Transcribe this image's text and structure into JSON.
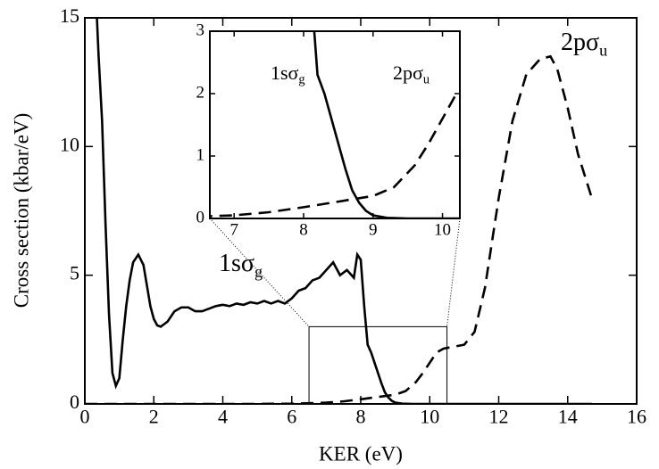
{
  "chart_data": {
    "type": "line",
    "xlabel": "KER (eV)",
    "ylabel": "Cross section (kbar/eV)",
    "xlim": [
      0,
      16
    ],
    "xticks": [
      0,
      2,
      4,
      6,
      8,
      10,
      12,
      14,
      16
    ],
    "ylim": [
      0,
      15
    ],
    "yticks": [
      0,
      5,
      10,
      15
    ],
    "series": [
      {
        "label": {
          "text": "1sσ",
          "sub": "g"
        },
        "color": "#000000",
        "dash": "solid",
        "x": [
          0.35,
          0.4,
          0.5,
          0.6,
          0.7,
          0.8,
          0.9,
          1.0,
          1.1,
          1.2,
          1.3,
          1.4,
          1.55,
          1.7,
          1.8,
          1.9,
          2.0,
          2.1,
          2.2,
          2.4,
          2.6,
          2.8,
          3.0,
          3.2,
          3.4,
          3.6,
          3.8,
          4.0,
          4.2,
          4.4,
          4.6,
          4.8,
          5.0,
          5.2,
          5.4,
          5.6,
          5.8,
          6.0,
          6.2,
          6.4,
          6.6,
          6.8,
          7.0,
          7.2,
          7.4,
          7.6,
          7.8,
          7.9,
          8.0,
          8.1,
          8.2,
          8.3,
          8.4,
          8.5,
          8.6,
          8.7,
          8.8,
          8.9,
          9.0,
          9.2,
          9.5,
          10.0,
          12.0,
          14.7
        ],
        "values": [
          15,
          13.5,
          11,
          7,
          3.5,
          1.2,
          0.7,
          1.0,
          2.5,
          3.8,
          4.8,
          5.5,
          5.8,
          5.4,
          4.6,
          3.8,
          3.3,
          3.05,
          3.0,
          3.2,
          3.6,
          3.75,
          3.75,
          3.6,
          3.6,
          3.7,
          3.8,
          3.85,
          3.8,
          3.9,
          3.85,
          3.95,
          3.9,
          4.0,
          3.9,
          4.0,
          3.9,
          4.1,
          4.4,
          4.5,
          4.8,
          4.9,
          5.2,
          5.5,
          5.0,
          5.2,
          4.9,
          5.8,
          5.6,
          3.8,
          2.3,
          2.0,
          1.6,
          1.2,
          0.8,
          0.45,
          0.25,
          0.12,
          0.05,
          0.01,
          0,
          0,
          0,
          0
        ]
      },
      {
        "label": {
          "text": "2pσ",
          "sub": "u"
        },
        "color": "#000000",
        "dash": "dashed",
        "x": [
          0,
          5,
          6,
          7,
          7.5,
          8,
          8.5,
          9,
          9.3,
          9.6,
          9.8,
          10,
          10.2,
          10.4,
          10.6,
          11,
          11.3,
          11.6,
          12,
          12.4,
          12.8,
          13.2,
          13.5,
          13.7,
          14,
          14.3,
          14.7
        ],
        "values": [
          0,
          0,
          0.01,
          0.05,
          0.1,
          0.18,
          0.27,
          0.36,
          0.5,
          0.85,
          1.2,
          1.6,
          2.0,
          2.15,
          2.2,
          2.3,
          2.8,
          4.5,
          8,
          11,
          12.8,
          13.4,
          13.5,
          13,
          11.5,
          9.7,
          8
        ]
      }
    ],
    "zoom_box": {
      "xlim": [
        6.5,
        10.5
      ],
      "ylim": [
        0,
        3
      ]
    },
    "inset": {
      "xlim": [
        6.65,
        10.25
      ],
      "xticks": [
        7,
        8,
        9,
        10
      ],
      "ylim": [
        0,
        3
      ],
      "yticks": [
        0,
        1,
        2,
        3
      ]
    }
  }
}
